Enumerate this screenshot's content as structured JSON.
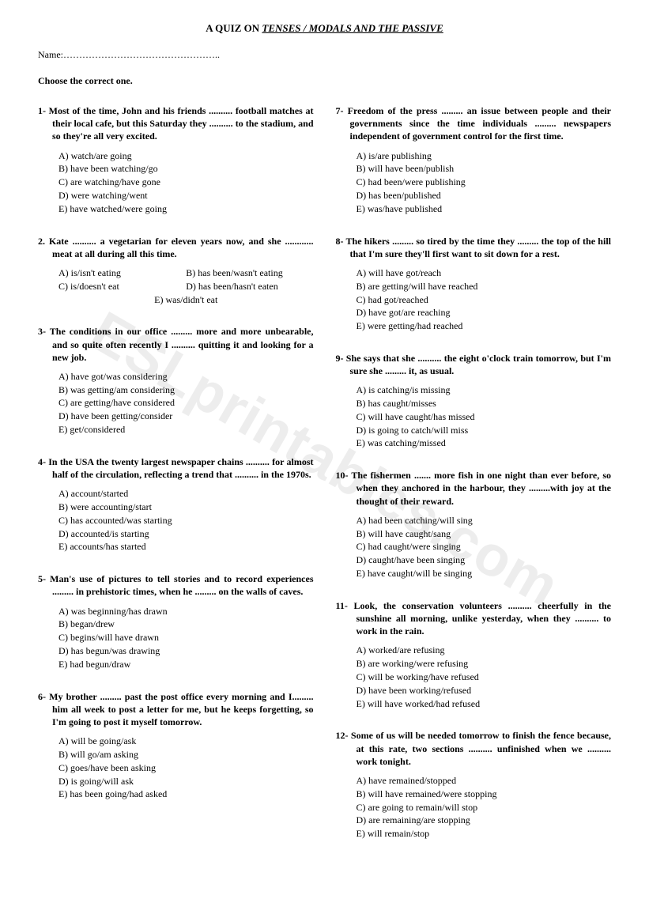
{
  "title_prefix": "A QUIZ ON ",
  "title_underlined": "TENSES / MODALS AND THE PASSIVE",
  "name_label": "Name:…………………………………………..",
  "instruction": "Choose the correct one.",
  "watermark": "ESLprintables.com",
  "left": [
    {
      "num": "1-",
      "stem": "Most of the time, John and his friends .......... football matches at their local cafe, but this Saturday they .......... to the stadium, and so they're all very excited.",
      "opts": [
        "A) watch/are going",
        "B) have been watching/go",
        "C) are watching/have gone",
        "D) were watching/went",
        "E) have watched/were going"
      ]
    },
    {
      "num": "2.",
      "stem": "Kate .......... a vegetarian for eleven years now, and she ............ meat at all during all this time.",
      "pair_opts": [
        [
          "A) is/isn't eating",
          "B) has been/wasn't eating"
        ],
        [
          "C) is/doesn't eat",
          "D) has been/hasn't eaten"
        ]
      ],
      "last_center": "E) was/didn't eat"
    },
    {
      "num": "3-",
      "stem": "The conditions in our office ......... more and more unbearable, and so quite often recently I .......... quitting it and looking for a new job.",
      "opts": [
        "A) have got/was considering",
        "B) was getting/am considering",
        "C) are getting/have considered",
        "D) have been getting/consider",
        "E) get/considered"
      ]
    },
    {
      "num": "4-",
      "stem": "In the USA the twenty largest newspaper chains .......... for almost half of the circulation, reflecting a trend that .......... in the 1970s.",
      "opts": [
        "A) account/started",
        "B) were accounting/start",
        "C) has accounted/was starting",
        "D) accounted/is starting",
        "E) accounts/has started"
      ]
    },
    {
      "num": "5-",
      "stem": "Man's use of pictures to tell stories and to record experiences ......... in prehistoric times, when he ......... on the walls of caves.",
      "opts": [
        "A) was beginning/has drawn",
        "B) began/drew",
        "C) begins/will have drawn",
        "D) has begun/was drawing",
        "E) had begun/draw"
      ]
    },
    {
      "num": "6-",
      "stem": "My brother  ......... past the post office every morning and I......... him all week to post a letter for me, but he keeps forgetting, so I'm going to post it myself tomorrow.",
      "opts": [
        "A) will be going/ask",
        "B) will go/am asking",
        "C) goes/have been asking",
        "D) is going/will ask",
        "E) has been going/had asked"
      ]
    }
  ],
  "right": [
    {
      "num": "7-",
      "stem": "Freedom of the press ......... an issue between people and their governments since the time individuals ......... newspapers independent of government control for the first time.",
      "opts": [
        "A) is/are publishing",
        "B) will have been/publish",
        "C) had been/were publishing",
        "D) has been/published",
        "E) was/have published"
      ]
    },
    {
      "num": "8-",
      "stem": "The hikers ......... so tired by the time they ......... the top of the hill that I'm sure they'll first want to sit down for a rest.",
      "opts": [
        "A) will have got/reach",
        "B) are getting/will have reached",
        "C) had got/reached",
        "D) have got/are reaching",
        "E) were getting/had reached"
      ]
    },
    {
      "num": "9-",
      "stem": "She says that she .......... the eight o'clock train tomorrow, but I'm sure she ......... it, as usual.",
      "opts": [
        "A) is catching/is missing",
        "B) has caught/misses",
        "C) will have caught/has missed",
        "D) is going to catch/will miss",
        "E) was catching/missed"
      ]
    },
    {
      "num": "10-",
      "stem": "The fishermen ....... more fish in one night than ever before, so when they anchored in the harbour, they .........with joy at the thought of their reward.",
      "opts": [
        "A) had been catching/will sing",
        "B) will have caught/sang",
        "C) had caught/were singing",
        "D) caught/have been singing",
        "E) have caught/will be singing"
      ]
    },
    {
      "num": "11-",
      "stem": "Look, the conservation volunteers .......... cheerfully in the sunshine all morning, unlike yesterday, when they .......... to work in the rain.",
      "opts": [
        "A) worked/are refusing",
        "B) are working/were refusing",
        "C) will be working/have refused",
        "D) have been working/refused",
        "E) will have worked/had refused"
      ]
    },
    {
      "num": "12-",
      "stem": "Some of us will be needed tomorrow to finish the fence because, at this rate, two sections .......... unfinished when we .......... work tonight.",
      "opts": [
        "A) have remained/stopped",
        "B) will have remained/were stopping",
        "C) are going to remain/will stop",
        "D) are remaining/are stopping",
        "E) will remain/stop"
      ]
    }
  ]
}
